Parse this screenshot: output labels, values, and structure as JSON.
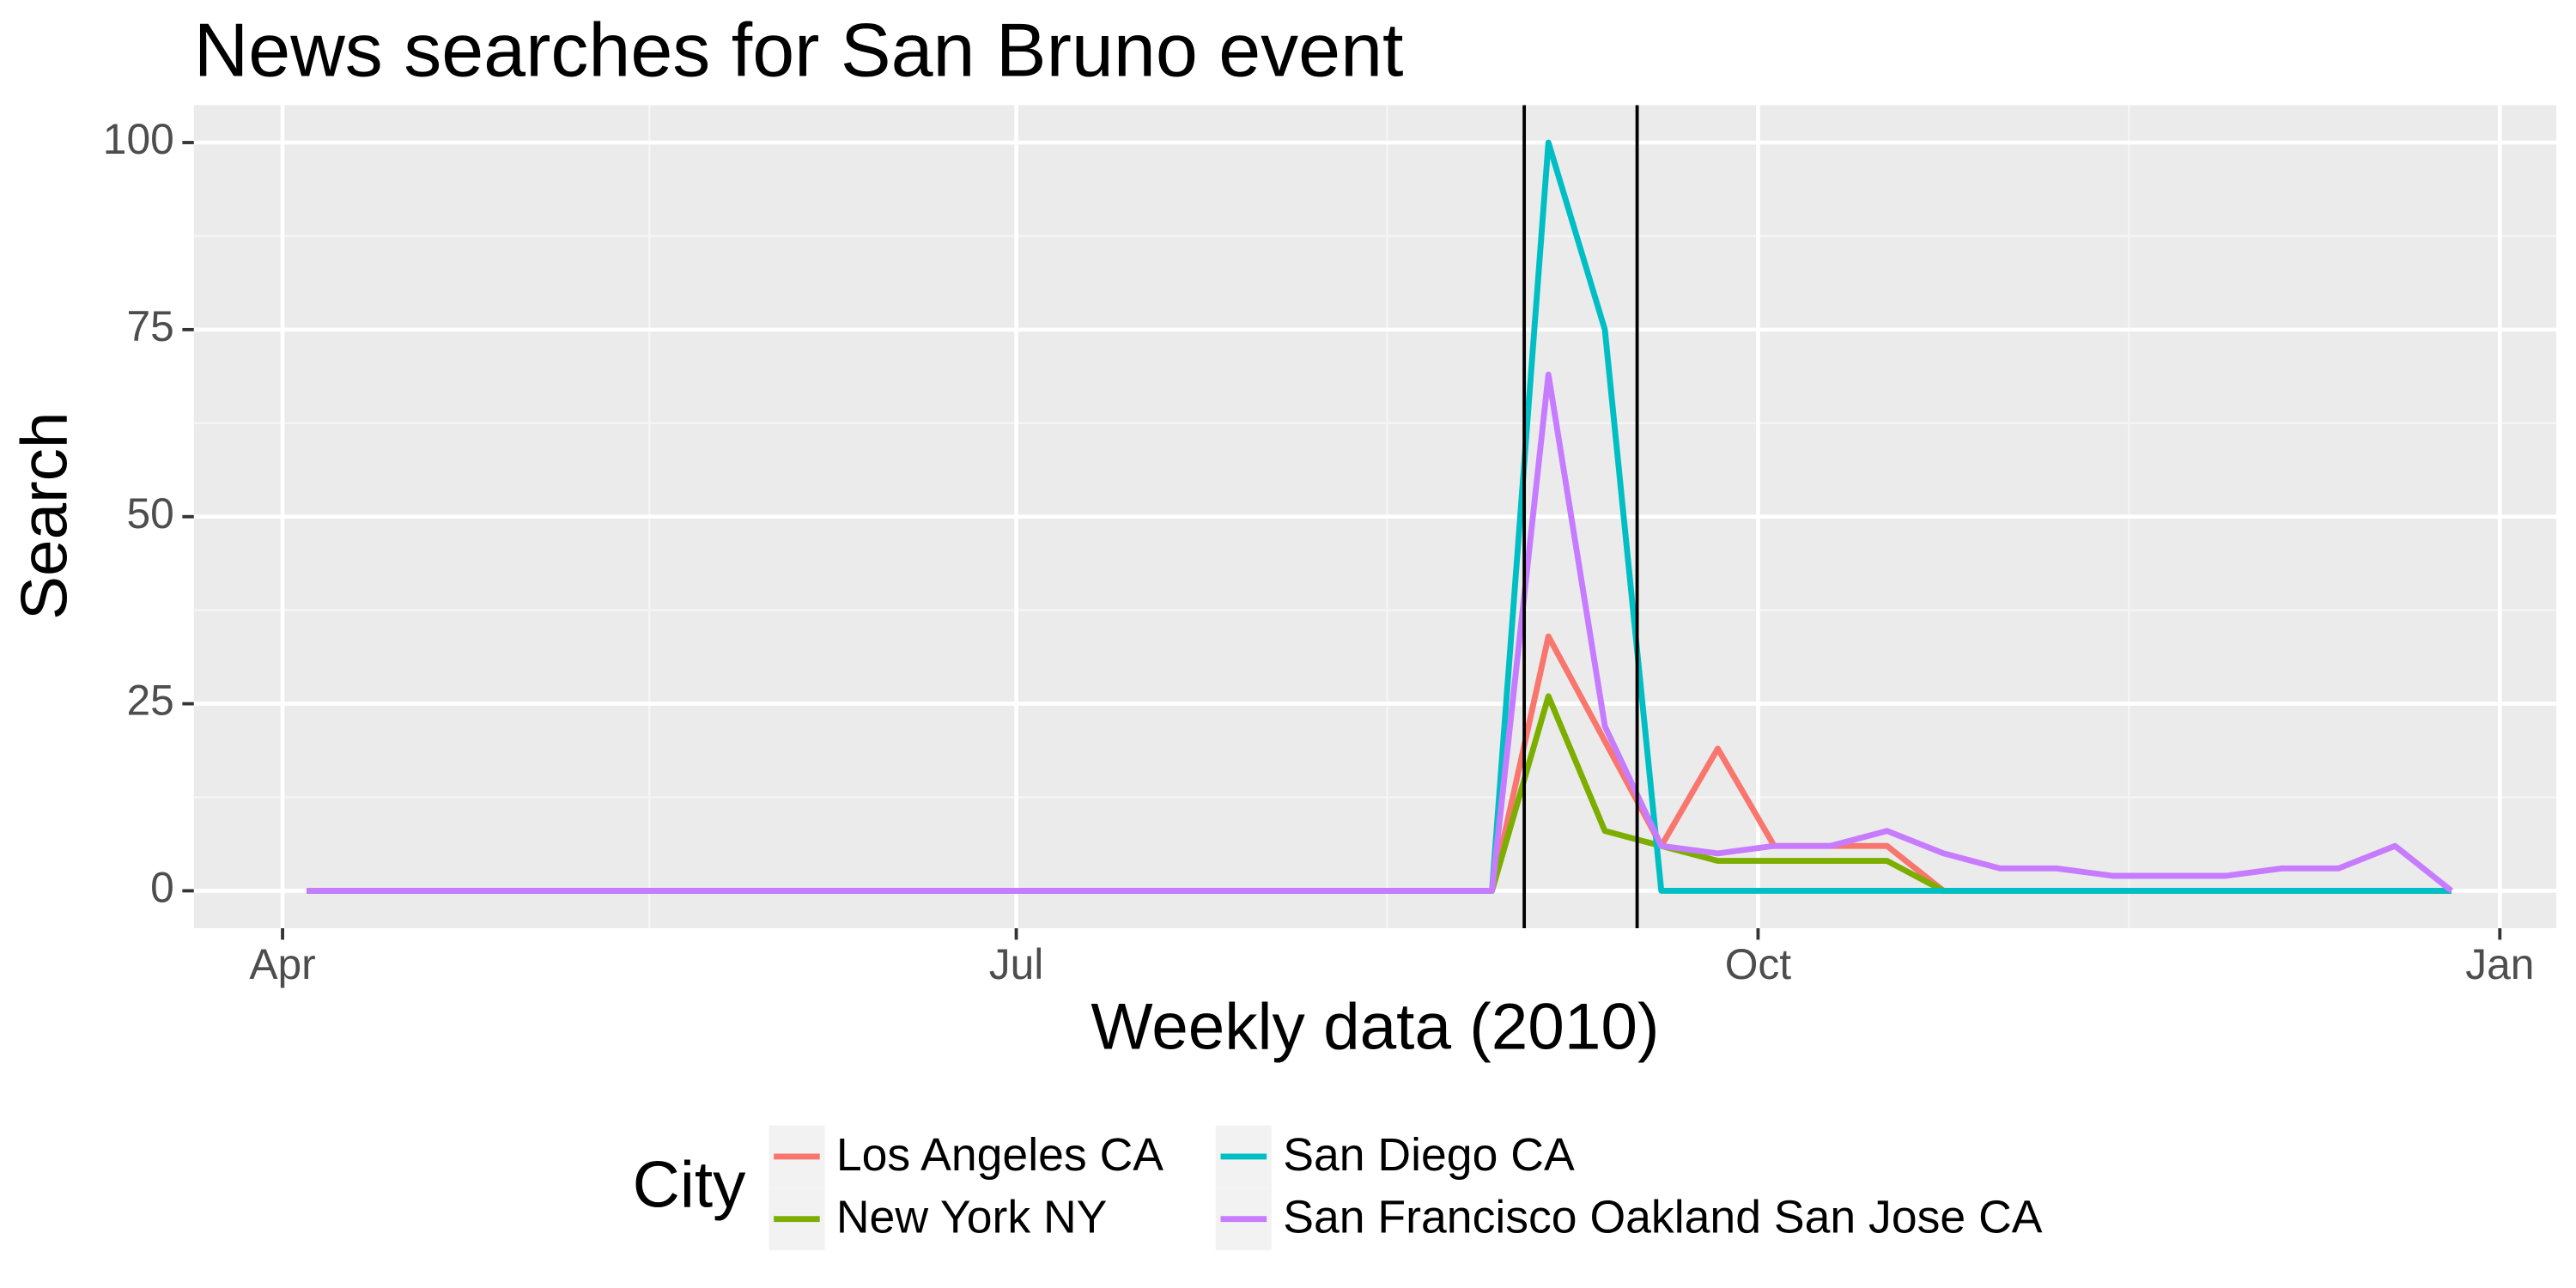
{
  "chart_data": {
    "type": "line",
    "title": "News searches for San Bruno event",
    "x_label": "Weekly data (2010)",
    "y_label": "Search",
    "legend_title": "City",
    "legend_position": "bottom",
    "grid": true,
    "x": [
      "2010-04-04",
      "2010-04-11",
      "2010-04-18",
      "2010-04-25",
      "2010-05-02",
      "2010-05-09",
      "2010-05-16",
      "2010-05-23",
      "2010-05-30",
      "2010-06-06",
      "2010-06-13",
      "2010-06-20",
      "2010-06-27",
      "2010-07-04",
      "2010-07-11",
      "2010-07-18",
      "2010-07-25",
      "2010-08-01",
      "2010-08-08",
      "2010-08-15",
      "2010-08-22",
      "2010-08-29",
      "2010-09-05",
      "2010-09-12",
      "2010-09-19",
      "2010-09-26",
      "2010-10-03",
      "2010-10-10",
      "2010-10-17",
      "2010-10-24",
      "2010-10-31",
      "2010-11-07",
      "2010-11-14",
      "2010-11-21",
      "2010-11-28",
      "2010-12-05",
      "2010-12-12",
      "2010-12-19",
      "2010-12-26"
    ],
    "series": [
      {
        "name": "Los Angeles CA",
        "color": "#F8766D",
        "values": [
          0,
          0,
          0,
          0,
          0,
          0,
          0,
          0,
          0,
          0,
          0,
          0,
          0,
          0,
          0,
          0,
          0,
          0,
          0,
          0,
          0,
          0,
          34,
          20,
          6,
          19,
          6,
          6,
          6,
          0,
          0,
          0,
          0,
          0,
          0,
          0,
          0,
          0,
          0
        ]
      },
      {
        "name": "New York NY",
        "color": "#7CAE00",
        "values": [
          0,
          0,
          0,
          0,
          0,
          0,
          0,
          0,
          0,
          0,
          0,
          0,
          0,
          0,
          0,
          0,
          0,
          0,
          0,
          0,
          0,
          0,
          26,
          8,
          6,
          4,
          4,
          4,
          4,
          0,
          0,
          0,
          0,
          0,
          0,
          0,
          0,
          0,
          0
        ]
      },
      {
        "name": "San Diego CA",
        "color": "#00BFC4",
        "values": [
          0,
          0,
          0,
          0,
          0,
          0,
          0,
          0,
          0,
          0,
          0,
          0,
          0,
          0,
          0,
          0,
          0,
          0,
          0,
          0,
          0,
          0,
          100,
          75,
          0,
          0,
          0,
          0,
          0,
          0,
          0,
          0,
          0,
          0,
          0,
          0,
          0,
          0,
          0
        ]
      },
      {
        "name": "San Francisco Oakland San Jose CA",
        "color": "#C77CFF",
        "values": [
          0,
          0,
          0,
          0,
          0,
          0,
          0,
          0,
          0,
          0,
          0,
          0,
          0,
          0,
          0,
          0,
          0,
          0,
          0,
          0,
          0,
          0,
          69,
          22,
          6,
          5,
          6,
          6,
          8,
          5,
          3,
          3,
          2,
          2,
          2,
          3,
          3,
          6,
          0
        ]
      }
    ],
    "vlines": [
      "2010-09-02",
      "2010-09-16"
    ],
    "xlim": [
      "2010-03-21",
      "2011-01-08"
    ],
    "xticks": [
      {
        "value": "2010-04-01",
        "label": "Apr"
      },
      {
        "value": "2010-07-01",
        "label": "Jul"
      },
      {
        "value": "2010-10-01",
        "label": "Oct"
      },
      {
        "value": "2011-01-01",
        "label": "Jan"
      }
    ],
    "ylim": [
      -5,
      105
    ],
    "yticks": [
      0,
      25,
      50,
      75,
      100
    ]
  }
}
